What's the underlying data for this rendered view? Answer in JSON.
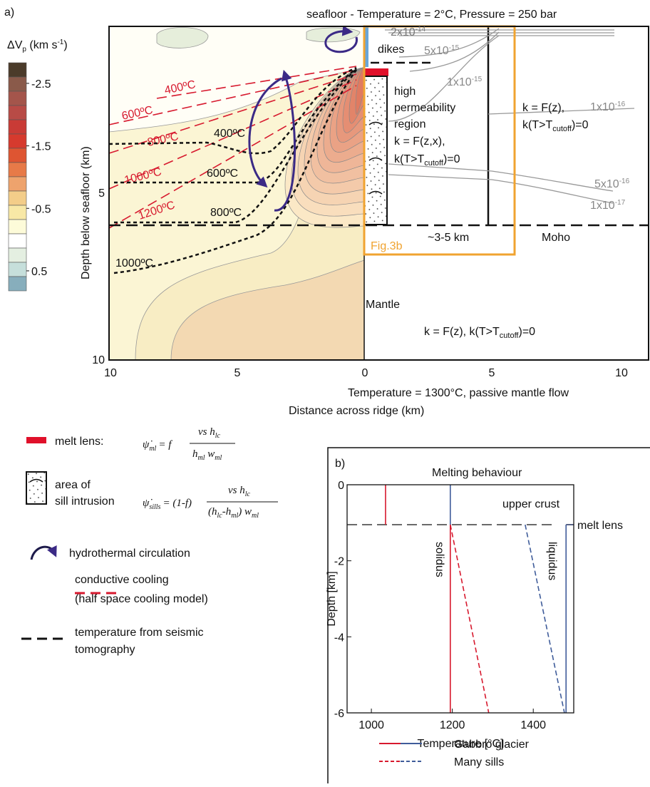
{
  "panel_a": {
    "label": "a)",
    "seafloor_note": "seafloor - Temperature = 2°C, Pressure = 250 bar",
    "mantle_note": "Temperature = 1300°C, passive mantle flow",
    "x_label": "Distance across ridge (km)",
    "y_label": "Depth below seafloor (km)",
    "x_ticks": [
      "10",
      "5",
      "0",
      "5",
      "10"
    ],
    "y_ticks": [
      "5",
      "10"
    ],
    "colorbar": {
      "title": "ΔV",
      "title_sub": "p",
      "title_unit": " (km s",
      "title_sup": "-1",
      "title_end": ")",
      "lim": [
        -2.83,
        0.82
      ],
      "ticks": [
        -2.5,
        -1.5,
        -0.5,
        0.5
      ],
      "colors": [
        "#4b3b2a",
        "#8a5a4a",
        "#a4554b",
        "#b84b46",
        "#c93b36",
        "#d63a2e",
        "#de5532",
        "#e77a48",
        "#eea36d",
        "#f3cd89",
        "#f8e8a6",
        "#fdfbd9",
        "#ffffff",
        "#e4efe1",
        "#c6dfdb",
        "#87aebc"
      ]
    },
    "conductive_isotherms": [
      "400ºC",
      "600ºC",
      "800ºC",
      "1000ºC",
      "1200ºC"
    ],
    "seismic_isotherms": [
      "400ºC",
      "600ºC",
      "800ºC",
      "1000ºC"
    ],
    "dikes": "dikes",
    "region": [
      "high",
      "permeability",
      "region"
    ],
    "k_axis": "k = F(z,x),",
    "k_off": "k = F(z),",
    "k_cut_a": "k(T>T",
    "k_cut_sub": "cutoff",
    "k_cut_b": ")=0",
    "permeability": [
      {
        "base": "2x10",
        "exp": "-14"
      },
      {
        "base": "5x10",
        "exp": "-15"
      },
      {
        "base": "1x10",
        "exp": "-15"
      },
      {
        "base": "1x10",
        "exp": "-16"
      },
      {
        "base": "5x10",
        "exp": "-16"
      },
      {
        "base": "1x10",
        "exp": "-17"
      }
    ],
    "crust_thickness": "~3-5 km",
    "moho": "Moho",
    "fig_ref": "Fig.3b",
    "mantle": "Mantle",
    "mantle_k": "k = F(z), k(T>T",
    "mantle_k_sub": "cutoff",
    "mantle_k_end": ")=0"
  },
  "legend": {
    "melt_lens": "melt lens:",
    "eq_melt_lens": {
      "lhs": "ψ̇",
      "lhs_sub": "ml",
      "rhs": "= f",
      "num": "vs h",
      "num_sub": "lc",
      "den_a": "h",
      "den_a_sub": "ml",
      "den_b": " w",
      "den_b_sub": "ml"
    },
    "sill": [
      "area of",
      "sill intrusion"
    ],
    "eq_sills": {
      "lhs": "ψ̇",
      "lhs_sub": "sills",
      "rhs": "= (1-f)",
      "num": "vs h",
      "num_sub": "lc",
      "den_a": "(h",
      "den_a_sub": "lc",
      "den_b": "-h",
      "den_b_sub": "ml",
      "den_c": ") w",
      "den_c_sub": "ml"
    },
    "circulation": "hydrothermal circulation",
    "conductive": [
      "conductive cooling",
      "(half space cooling model)"
    ],
    "seismic": [
      "temperature from seismic",
      "tomography"
    ]
  },
  "chart_data": {
    "type": "line",
    "label": "b)",
    "title": "Melting behaviour",
    "x_label": "Temperature [°C]",
    "y_label": "Depth [km]",
    "xlim": [
      940,
      1500
    ],
    "ylim": [
      -6,
      0
    ],
    "xticks": [
      1000,
      1200,
      1400
    ],
    "yticks": [
      0,
      -2,
      -4,
      -6
    ],
    "annotations": [
      "upper crust",
      "solidus",
      "liquidus"
    ],
    "melt_lens": {
      "label": "melt lens",
      "depth": -1.05
    },
    "series": [
      {
        "name": "Gabbro glacier",
        "color": "#d7192e",
        "dash": false,
        "x": [
          1035,
          1035,
          null,
          1195,
          1195
        ],
        "values": [
          0,
          -1.05,
          null,
          -1.05,
          -6
        ]
      },
      {
        "color": "#3f5c9a",
        "dash": false,
        "x": [
          1195,
          1195,
          null,
          1481,
          1481
        ],
        "values": [
          0,
          -1.05,
          null,
          -1.05,
          -6
        ]
      },
      {
        "name": "Many sills",
        "color": "#d7192e",
        "dash": true,
        "x": [
          1195,
          1290
        ],
        "values": [
          -1.05,
          -6
        ]
      },
      {
        "color": "#3f5c9a",
        "dash": true,
        "x": [
          1380,
          1477
        ],
        "values": [
          -1.05,
          -6
        ]
      }
    ]
  }
}
